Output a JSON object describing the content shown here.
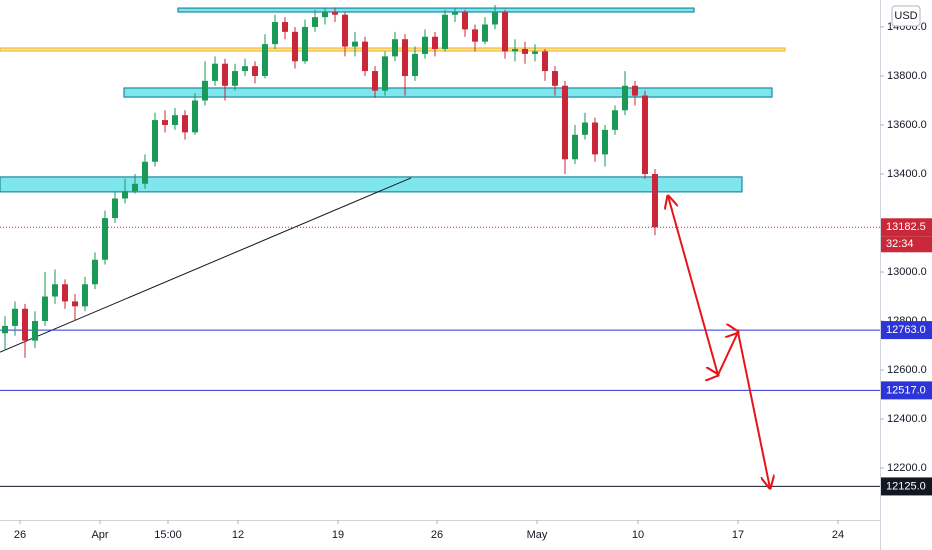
{
  "chart_data": {
    "type": "candlestick",
    "currency": "USD",
    "countdown": "32:34",
    "colors": {
      "up": "#1b9a57",
      "down": "#c8283a"
    },
    "xlim": [
      0,
      44
    ],
    "ylim": [
      11988,
      14110
    ],
    "xticks": [
      {
        "value": 1,
        "label": "26"
      },
      {
        "value": 5,
        "label": "Apr"
      },
      {
        "value": 8.4,
        "label": "15:00"
      },
      {
        "value": 11.9,
        "label": "12"
      },
      {
        "value": 16.9,
        "label": "19"
      },
      {
        "value": 21.85,
        "label": "26"
      },
      {
        "value": 26.85,
        "label": "May"
      },
      {
        "value": 31.9,
        "label": "10"
      },
      {
        "value": 36.9,
        "label": "17"
      },
      {
        "value": 41.9,
        "label": "24"
      }
    ],
    "yticks": [
      {
        "value": 14000,
        "label": "14000.0"
      },
      {
        "value": 13800,
        "label": "13800.0"
      },
      {
        "value": 13600,
        "label": "13600.0"
      },
      {
        "value": 13400,
        "label": "13400.0"
      },
      {
        "value": 13000,
        "label": "13000.0"
      },
      {
        "value": 12800,
        "label": "12800.0"
      },
      {
        "value": 12600,
        "label": "12600.0"
      },
      {
        "value": 12400,
        "label": "12400.0"
      },
      {
        "value": 12200,
        "label": "12200.0"
      }
    ],
    "x": [
      0.25,
      0.75,
      1.25,
      1.75,
      2.25,
      2.75,
      3.25,
      3.75,
      4.25,
      4.75,
      5.25,
      5.75,
      6.25,
      6.75,
      7.25,
      7.75,
      8.25,
      8.75,
      9.25,
      9.75,
      10.25,
      10.75,
      11.25,
      11.75,
      12.25,
      12.75,
      13.25,
      13.75,
      14.25,
      14.75,
      15.25,
      15.75,
      16.25,
      16.75,
      17.25,
      17.75,
      18.25,
      18.75,
      19.25,
      19.75,
      20.25,
      20.75,
      21.25,
      21.75,
      22.25,
      22.75,
      23.25,
      23.75,
      24.25,
      24.75,
      25.25,
      25.75,
      26.25,
      26.75,
      27.25,
      27.75,
      28.25,
      28.75,
      29.25,
      29.75,
      30.25,
      30.75,
      31.25,
      31.75,
      32.25,
      32.75
    ],
    "open": [
      12750,
      12780,
      12850,
      12720,
      12800,
      12900,
      12950,
      12880,
      12860,
      12950,
      13050,
      13220,
      13300,
      13330,
      13360,
      13450,
      13620,
      13600,
      13640,
      13570,
      13700,
      13780,
      13850,
      13760,
      13820,
      13840,
      13800,
      13930,
      14020,
      13980,
      13860,
      14000,
      14040,
      14060,
      14050,
      13920,
      13940,
      13820,
      13740,
      13880,
      13950,
      13800,
      13890,
      13960,
      13910,
      14050,
      14060,
      13990,
      13940,
      14010,
      14060,
      13900,
      13910,
      13890,
      13900,
      13820,
      13760,
      13460,
      13560,
      13610,
      13480,
      13580,
      13660,
      13760,
      13720,
      13400
    ],
    "high": [
      12820,
      12880,
      12870,
      12840,
      13000,
      13010,
      12970,
      12910,
      12980,
      13080,
      13250,
      13330,
      13380,
      13400,
      13480,
      13650,
      13660,
      13670,
      13660,
      13730,
      13860,
      13880,
      13870,
      13850,
      13870,
      13860,
      13970,
      14050,
      14040,
      14000,
      14030,
      14070,
      14080,
      14080,
      14060,
      13980,
      13960,
      13840,
      13900,
      13980,
      13970,
      13920,
      13990,
      13980,
      14070,
      14080,
      14070,
      14010,
      14040,
      14090,
      14070,
      13950,
      13940,
      13930,
      13910,
      13840,
      13780,
      13600,
      13650,
      13630,
      13600,
      13680,
      13820,
      13780,
      13740,
      13420
    ],
    "low": [
      12680,
      12740,
      12650,
      12690,
      12780,
      12870,
      12850,
      12800,
      12840,
      12930,
      13030,
      13200,
      13280,
      13320,
      13340,
      13430,
      13570,
      13580,
      13540,
      13560,
      13680,
      13760,
      13700,
      13740,
      13800,
      13770,
      13790,
      13910,
      13950,
      13830,
      13850,
      13980,
      14010,
      14020,
      13880,
      13880,
      13800,
      13710,
      13720,
      13860,
      13720,
      13780,
      13870,
      13880,
      13900,
      14020,
      13960,
      13900,
      13930,
      13990,
      13870,
      13860,
      13850,
      13860,
      13780,
      13720,
      13400,
      13440,
      13540,
      13450,
      13430,
      13560,
      13640,
      13680,
      13380,
      13150
    ],
    "close": [
      12780,
      12850,
      12720,
      12800,
      12900,
      12950,
      12880,
      12860,
      12950,
      13050,
      13220,
      13300,
      13330,
      13360,
      13450,
      13620,
      13600,
      13640,
      13570,
      13700,
      13780,
      13850,
      13760,
      13820,
      13840,
      13800,
      13930,
      14020,
      13980,
      13860,
      14000,
      14040,
      14060,
      14050,
      13920,
      13940,
      13820,
      13740,
      13880,
      13950,
      13800,
      13890,
      13960,
      13910,
      14050,
      14060,
      13990,
      13940,
      14010,
      14060,
      13900,
      13910,
      13890,
      13900,
      13820,
      13760,
      13460,
      13560,
      13610,
      13480,
      13580,
      13660,
      13760,
      13720,
      13400,
      13182.5
    ],
    "last_price": 13182.5,
    "levels": [
      {
        "value": 12763,
        "label": "12763.0",
        "color": "#2e35d8"
      },
      {
        "value": 12517,
        "label": "12517.0",
        "color": "#2e35d8"
      },
      {
        "value": 12125,
        "label": "12125.0",
        "color": "#131722"
      }
    ],
    "zones": [
      {
        "x": [
          8.9,
          34.7
        ],
        "y": [
          14061,
          14077
        ],
        "color": "#7fe6ee",
        "border": "#1d8a9c"
      },
      {
        "x": [
          0,
          39.25
        ],
        "y": [
          13902,
          13914
        ],
        "color": "#fbe7a6",
        "border": "#f2b632"
      },
      {
        "x": [
          6.2,
          38.6
        ],
        "y": [
          13714,
          13751
        ],
        "color": "#7fe6ee",
        "border": "#1d8a9c"
      },
      {
        "x": [
          0,
          37.1
        ],
        "y": [
          13327,
          13388
        ],
        "color": "#7fe6ee",
        "border": "#1d8a9c"
      }
    ],
    "trendline": {
      "x": [
        0,
        20.55
      ],
      "y": [
        12673,
        13384
      ],
      "color": "#131722"
    },
    "projection": {
      "x": [
        33.4,
        35.9,
        36.9,
        38.5
      ],
      "y": [
        13310,
        12580,
        12755,
        12118
      ],
      "color": "#e8141a"
    }
  }
}
